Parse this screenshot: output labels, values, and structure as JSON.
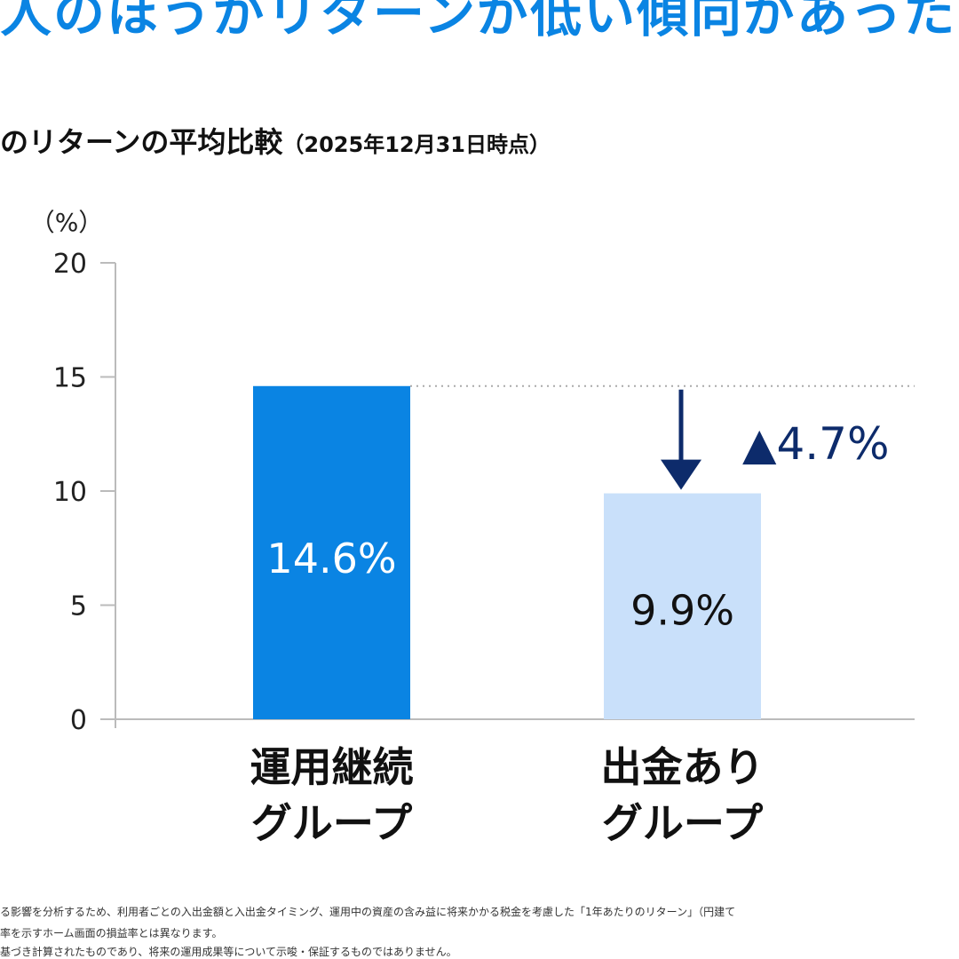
{
  "headline": "人のほうがリターンが低い傾向があった",
  "subtitle": {
    "main": "のリターンの平均比較",
    "date": "（2025年12月31日時点）"
  },
  "chart_data": {
    "type": "bar",
    "ylabel": "（%）",
    "ylim": [
      0,
      20
    ],
    "yticks": [
      "0",
      "5",
      "10",
      "15",
      "20"
    ],
    "categories": [
      [
        "運用継続",
        "グループ"
      ],
      [
        "出金あり",
        "グループ"
      ]
    ],
    "values": [
      14.6,
      9.9
    ],
    "data_labels": [
      "14.6%",
      "9.9%"
    ],
    "colors": [
      "#0a84e3",
      "#c9e0fa"
    ],
    "label_colors": [
      "#ffffff",
      "#111111"
    ],
    "annotation": {
      "text": "▲4.7%",
      "triangle": "▲",
      "value": "4.7%",
      "color": "#0d2b6b"
    },
    "grid": false
  },
  "footnotes": [
    "る影響を分析するため、利用者ごとの入出金額と入出金タイミング、運用中の資産の含み益に将来かかる税金を考慮した「1年あたりのリターン」（円建て",
    "率を示すホーム画面の損益率とは異なります。",
    "基づき計算されたものであり、将来の運用成果等について示唆・保証するものではありません。"
  ]
}
